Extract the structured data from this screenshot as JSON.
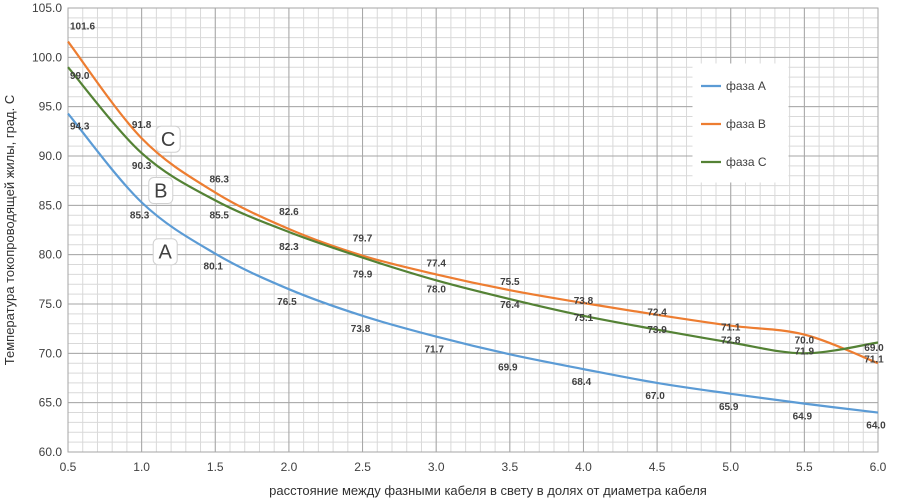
{
  "chart_data": {
    "type": "line",
    "title": "",
    "xlabel": "расстояние между фазными кабеля в свету в долях от диаметра кабеля",
    "ylabel": "Температура токопроводящей жилы, град. С",
    "xlim": [
      0.5,
      6.0
    ],
    "ylim": [
      60.0,
      105.0
    ],
    "x_ticks": [
      "0.5",
      "1.0",
      "1.5",
      "2.0",
      "2.5",
      "3.0",
      "3.5",
      "4.0",
      "4.5",
      "5.0",
      "5.5",
      "6.0"
    ],
    "y_ticks": [
      "60.0",
      "65.0",
      "70.0",
      "75.0",
      "80.0",
      "85.0",
      "90.0",
      "95.0",
      "100.0",
      "105.0"
    ],
    "grid": true,
    "legend_position": "right",
    "x": [
      0.5,
      1.0,
      1.5,
      2.0,
      2.5,
      3.0,
      3.5,
      4.0,
      4.5,
      5.0,
      5.5,
      6.0
    ],
    "series": [
      {
        "name": "фаза А",
        "color": "#5b9bd5",
        "values": [
          94.3,
          85.3,
          80.1,
          76.5,
          73.8,
          71.7,
          69.9,
          68.4,
          67.0,
          65.9,
          64.9,
          64.0
        ],
        "labels": [
          "94.3",
          "85.3",
          "80.1",
          "76.5",
          "73.8",
          "71.7",
          "69.9",
          "68.4",
          "67.0",
          "65.9",
          "64.9",
          "64.0"
        ]
      },
      {
        "name": "фаза В",
        "color": "#ed7d31",
        "values": [
          101.6,
          91.8,
          86.3,
          82.6,
          79.9,
          78.0,
          76.4,
          75.1,
          73.9,
          72.8,
          71.9,
          69.0
        ],
        "labels": [
          "101.6",
          "91.8",
          "86.3",
          "82.6",
          "79.9",
          "78.0",
          "76.4",
          "75.1",
          "73.9",
          "72.8",
          "71.9",
          "69.0"
        ]
      },
      {
        "name": "фаза С",
        "color": "#548235",
        "values": [
          99.0,
          90.3,
          85.5,
          82.3,
          79.7,
          77.4,
          75.5,
          73.8,
          72.4,
          71.1,
          70.0,
          71.1
        ],
        "labels": [
          "99.0",
          "90.3",
          "85.5",
          "82.3",
          "79.7",
          "77.4",
          "75.5",
          "73.8",
          "72.4",
          "71.1",
          "70.0",
          "71.1"
        ]
      }
    ],
    "annotations": [
      {
        "text": "C",
        "x": 1.18,
        "y": 91.7
      },
      {
        "text": "B",
        "x": 1.13,
        "y": 86.5
      },
      {
        "text": "A",
        "x": 1.16,
        "y": 80.3
      }
    ]
  }
}
